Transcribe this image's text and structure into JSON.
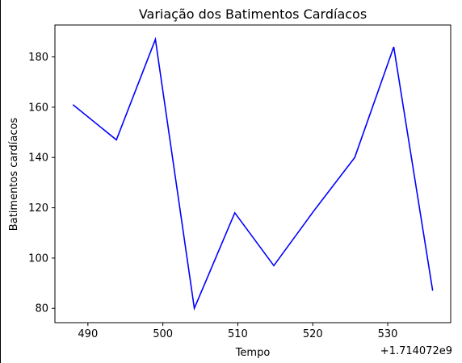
{
  "chart_data": {
    "type": "line",
    "title": "Variação dos Batimentos Cardíacos",
    "xlabel": "Tempo",
    "ylabel": "Batimentos cardíacos",
    "x_offset_label": "+1.714072e9",
    "x_ticks": [
      "490",
      "500",
      "510",
      "520",
      "530"
    ],
    "y_ticks": [
      "80",
      "100",
      "120",
      "140",
      "160",
      "180"
    ],
    "x_tick_values": [
      490,
      500,
      510,
      520,
      530
    ],
    "y_tick_values": [
      80,
      100,
      120,
      140,
      160,
      180
    ],
    "xlim": [
      485.6,
      538.4
    ],
    "ylim": [
      74.3,
      192.7
    ],
    "grid": false,
    "series": [
      {
        "color": "#0000ff",
        "x": [
          488.0,
          493.8,
          499.0,
          504.2,
          509.6,
          514.8,
          520.2,
          525.6,
          530.8,
          536.0
        ],
        "y": [
          161,
          147,
          187,
          80,
          118,
          97,
          119,
          140,
          184,
          87
        ]
      }
    ]
  }
}
